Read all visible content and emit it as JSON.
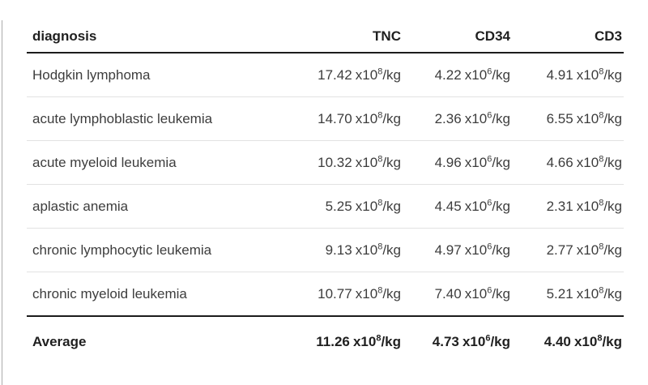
{
  "colors": {
    "background": "#ffffff",
    "text_body": "#3d3d3d",
    "text_heading": "#1f1f1f",
    "heavy_rule": "#1c1c1c",
    "row_divider": "#e2e2e2",
    "page_left_border": "#ababab"
  },
  "table": {
    "headers": {
      "diagnosis": "diagnosis",
      "tnc": "TNC",
      "cd34": "CD34",
      "cd3": "CD3"
    },
    "rows": [
      {
        "diagnosis": "Hodgkin lymphoma",
        "tnc": {
          "value": "17.42",
          "mult": "x10",
          "exp": "8",
          "unit": "/kg"
        },
        "cd34": {
          "value": "4.22",
          "mult": "x10",
          "exp": "6",
          "unit": "/kg"
        },
        "cd3": {
          "value": "4.91",
          "mult": "x10",
          "exp": "8",
          "unit": "/kg"
        }
      },
      {
        "diagnosis": "acute lymphoblastic leukemia",
        "tnc": {
          "value": "14.70",
          "mult": "x10",
          "exp": "8",
          "unit": "/kg"
        },
        "cd34": {
          "value": "2.36",
          "mult": "x10",
          "exp": "6",
          "unit": "/kg"
        },
        "cd3": {
          "value": "6.55",
          "mult": "x10",
          "exp": "8",
          "unit": "/kg"
        }
      },
      {
        "diagnosis": "acute myeloid leukemia",
        "tnc": {
          "value": "10.32",
          "mult": "x10",
          "exp": "8",
          "unit": "/kg"
        },
        "cd34": {
          "value": "4.96",
          "mult": "x10",
          "exp": "6",
          "unit": "/kg"
        },
        "cd3": {
          "value": "4.66",
          "mult": "x10",
          "exp": "8",
          "unit": "/kg"
        }
      },
      {
        "diagnosis": "aplastic anemia",
        "tnc": {
          "value": "5.25",
          "mult": "x10",
          "exp": "8",
          "unit": "/kg"
        },
        "cd34": {
          "value": "4.45",
          "mult": "x10",
          "exp": "6",
          "unit": "/kg"
        },
        "cd3": {
          "value": "2.31",
          "mult": "x10",
          "exp": "8",
          "unit": "/kg"
        }
      },
      {
        "diagnosis": "chronic lymphocytic leukemia",
        "tnc": {
          "value": "9.13",
          "mult": "x10",
          "exp": "8",
          "unit": "/kg"
        },
        "cd34": {
          "value": "4.97",
          "mult": "x10",
          "exp": "6",
          "unit": "/kg"
        },
        "cd3": {
          "value": "2.77",
          "mult": "x10",
          "exp": "8",
          "unit": "/kg"
        }
      },
      {
        "diagnosis": "chronic myeloid leukemia",
        "tnc": {
          "value": "10.77",
          "mult": "x10",
          "exp": "8",
          "unit": "/kg"
        },
        "cd34": {
          "value": "7.40",
          "mult": "x10",
          "exp": "6",
          "unit": "/kg"
        },
        "cd3": {
          "value": "5.21",
          "mult": "x10",
          "exp": "8",
          "unit": "/kg"
        }
      }
    ],
    "footer": {
      "label": "Average",
      "tnc": {
        "value": "11.26",
        "mult": "x10",
        "exp": "8",
        "unit": "/kg"
      },
      "cd34": {
        "value": "4.73",
        "mult": "x10",
        "exp": "6",
        "unit": "/kg"
      },
      "cd3": {
        "value": "4.40",
        "mult": "x10",
        "exp": "8",
        "unit": "/kg"
      }
    }
  },
  "chart_data": {
    "type": "table",
    "columns": [
      "diagnosis",
      "TNC",
      "CD34",
      "CD3"
    ],
    "rows": [
      [
        "Hodgkin lymphoma",
        "17.42 x10^8/kg",
        "4.22 x10^6/kg",
        "4.91 x10^8/kg"
      ],
      [
        "acute lymphoblastic leukemia",
        "14.70 x10^8/kg",
        "2.36 x10^6/kg",
        "6.55 x10^8/kg"
      ],
      [
        "acute myeloid leukemia",
        "10.32 x10^8/kg",
        "4.96 x10^6/kg",
        "4.66 x10^8/kg"
      ],
      [
        "aplastic anemia",
        "5.25 x10^8/kg",
        "4.45 x10^6/kg",
        "2.31 x10^8/kg"
      ],
      [
        "chronic lymphocytic leukemia",
        "9.13 x10^8/kg",
        "4.97 x10^6/kg",
        "2.77 x10^8/kg"
      ],
      [
        "chronic myeloid leukemia",
        "10.77 x10^8/kg",
        "7.40 x10^6/kg",
        "5.21 x10^8/kg"
      ]
    ],
    "footer": [
      "Average",
      "11.26 x10^8/kg",
      "4.73 x10^6/kg",
      "4.40 x10^8/kg"
    ]
  }
}
